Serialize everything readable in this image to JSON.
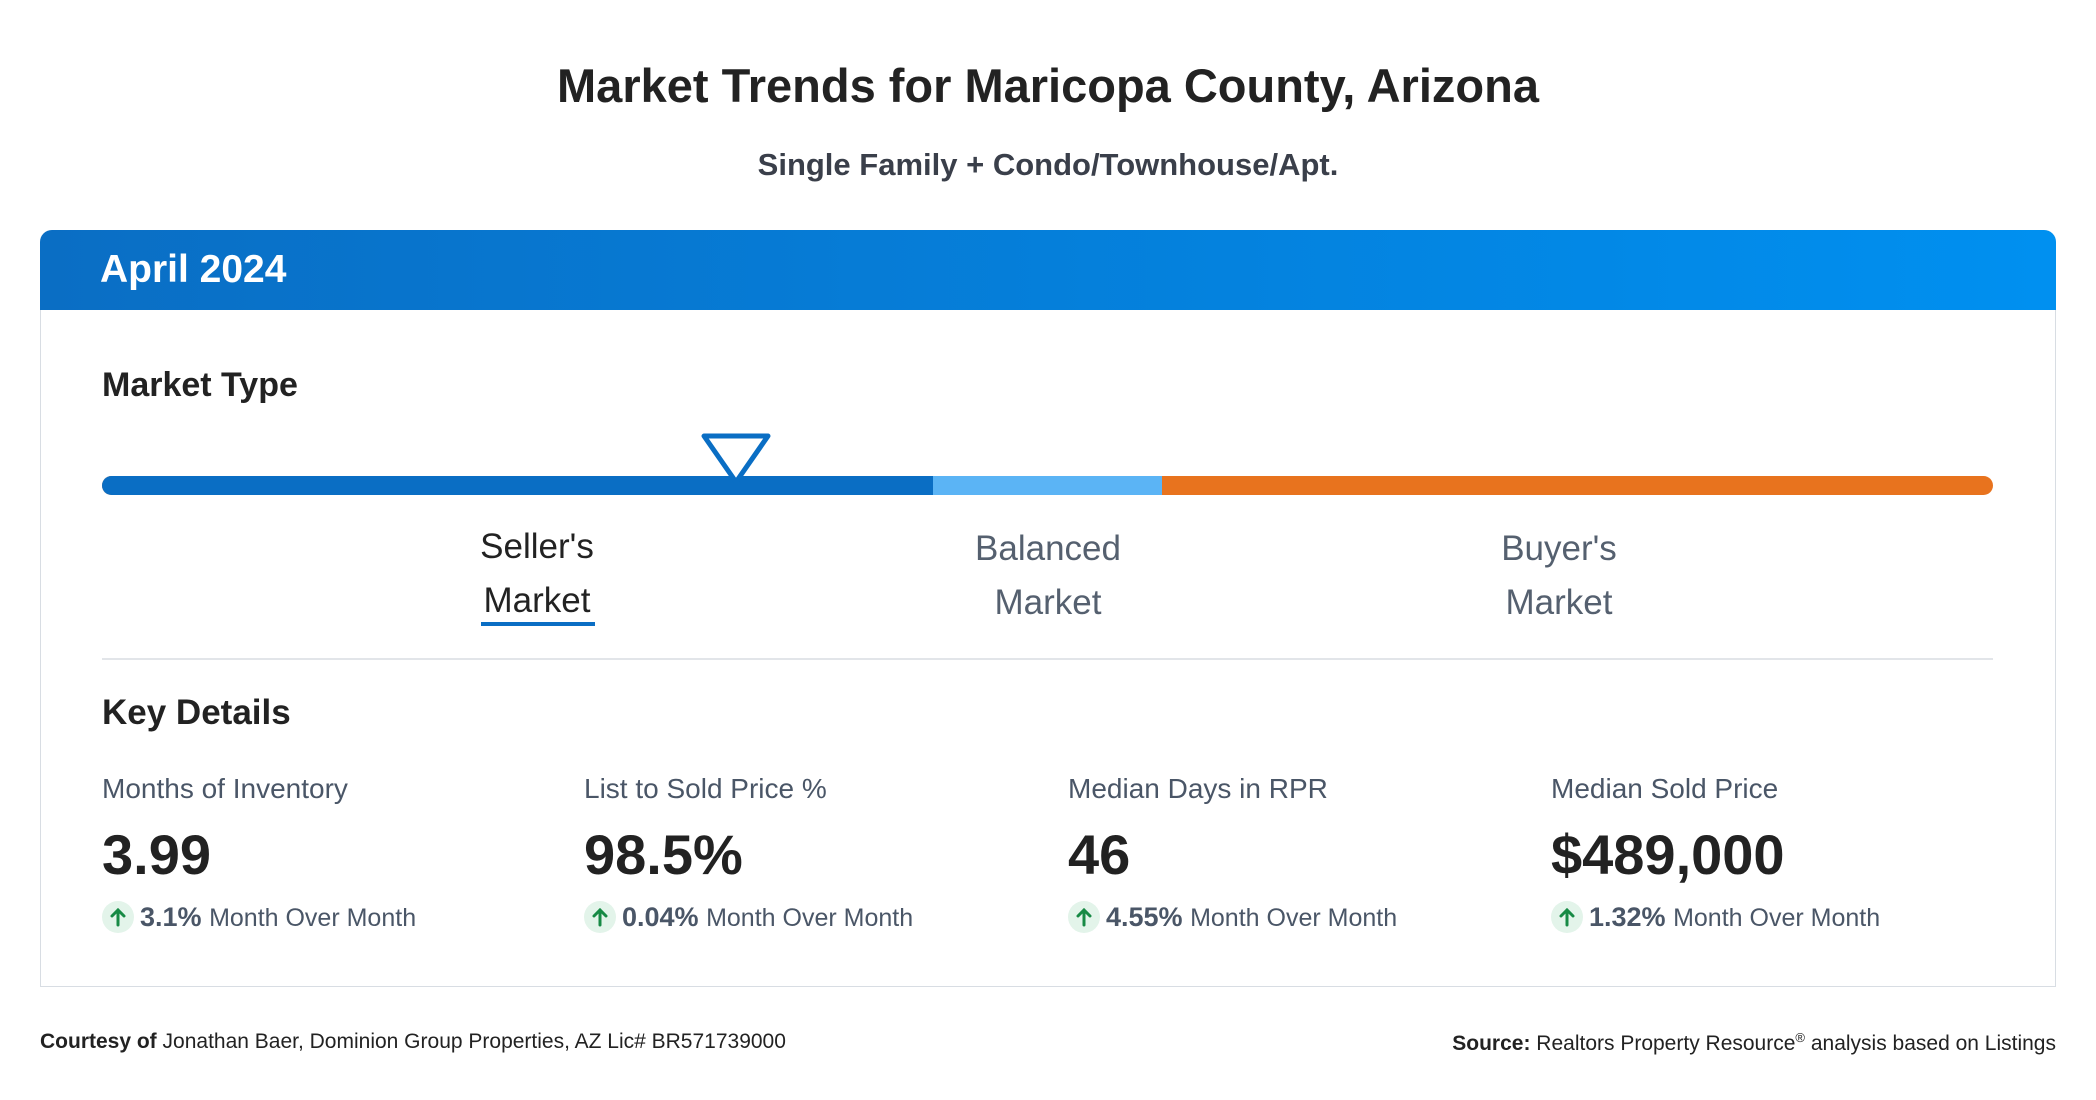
{
  "header": {
    "title": "Market Trends for Maricopa County, Arizona",
    "subtitle": "Single Family + Condo/Townhouse/Apt."
  },
  "card": {
    "period": "April 2024",
    "market_type": {
      "heading": "Market Type",
      "labels": [
        [
          "Seller's",
          "Market"
        ],
        [
          "Balanced",
          "Market"
        ],
        [
          "Buyer's",
          "Market"
        ]
      ]
    },
    "key_details": {
      "heading": "Key Details",
      "metrics": [
        {
          "label": "Months of Inventory",
          "value": "3.99",
          "change": "3.1%",
          "change_text": "Month Over Month"
        },
        {
          "label": "List to Sold Price %",
          "value": "98.5%",
          "change": "0.04%",
          "change_text": "Month Over Month"
        },
        {
          "label": "Median Days in RPR",
          "value": "46",
          "change": "4.55%",
          "change_text": "Month Over Month"
        },
        {
          "label": "Median Sold Price",
          "value": "$489,000",
          "change": "1.32%",
          "change_text": "Month Over Month"
        }
      ]
    }
  },
  "footer": {
    "courtesy_label": "Courtesy of",
    "courtesy": "Jonathan Baer, Dominion Group Properties, AZ Lic# BR571739000",
    "source_label": "Source:",
    "source": "Realtors Property Resource",
    "source_mark": "®",
    "source_rest": " analysis based on Listings"
  }
}
